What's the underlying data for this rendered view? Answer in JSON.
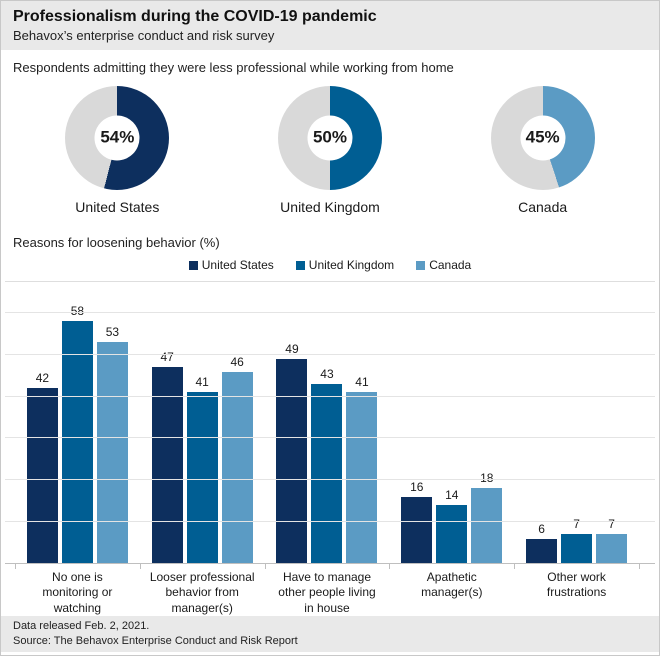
{
  "header": {
    "title": "Professionalism during the COVID-19 pandemic",
    "subtitle": "Behavox’s enterprise conduct and risk survey"
  },
  "colors": {
    "united_states": "#0d2f5e",
    "united_kingdom": "#005e93",
    "canada": "#5b9bc4",
    "donut_remainder": "#d9d9d9",
    "band_gray": "#e9e9e9"
  },
  "chart_data": [
    {
      "type": "pie",
      "subtype": "donut",
      "title": "Respondents admitting they were less professional while working from home",
      "remainder_color": "#d9d9d9",
      "items": [
        {
          "label": "United States",
          "value_pct": 54,
          "display": "54%",
          "color": "#0d2f5e"
        },
        {
          "label": "United Kingdom",
          "value_pct": 50,
          "display": "50%",
          "color": "#005e93"
        },
        {
          "label": "Canada",
          "value_pct": 45,
          "display": "45%",
          "color": "#5b9bc4"
        }
      ]
    },
    {
      "type": "bar",
      "title": "Reasons for loosening behavior (%)",
      "categories": [
        "No one is monitoring or watching",
        "Looser professional behavior from manager(s)",
        "Have to manage other people living in house",
        "Apathetic manager(s)",
        "Other work frustrations"
      ],
      "series": [
        {
          "name": "United States",
          "color": "#0d2f5e",
          "values": [
            42,
            47,
            49,
            16,
            6
          ]
        },
        {
          "name": "United Kingdom",
          "color": "#005e93",
          "values": [
            58,
            41,
            43,
            14,
            7
          ]
        },
        {
          "name": "Canada",
          "color": "#5b9bc4",
          "values": [
            53,
            46,
            41,
            18,
            7
          ]
        }
      ],
      "ylim": [
        0,
        68
      ],
      "gridline_values": [
        10,
        20,
        30,
        40,
        50,
        60
      ],
      "grid": "horizontal",
      "legend_position": "top-center",
      "data_labels": true
    }
  ],
  "footer": {
    "line1": "Data released Feb. 2, 2021.",
    "line2": "Source: The Behavox Enterprise Conduct and Risk Report"
  }
}
